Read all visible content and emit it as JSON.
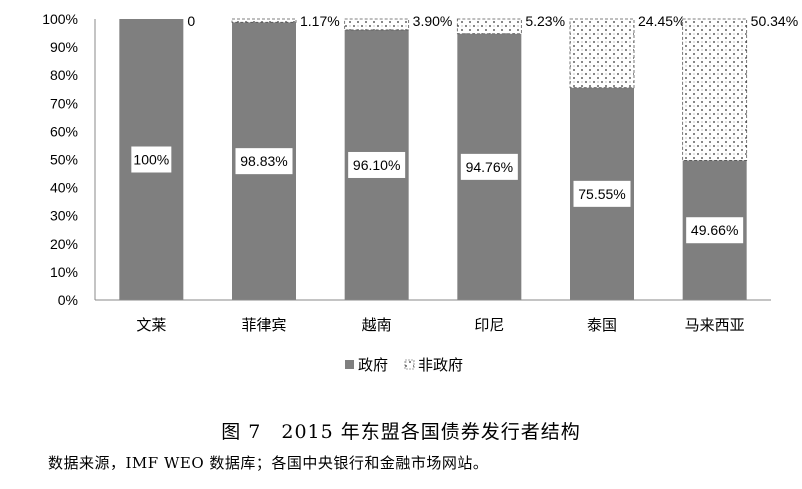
{
  "chart_data": {
    "type": "bar",
    "stacked": true,
    "categories": [
      "文莱",
      "菲律宾",
      "越南",
      "印尼",
      "泰国",
      "马来西亚"
    ],
    "series": [
      {
        "name": "政府",
        "values": [
          100,
          98.83,
          96.1,
          94.76,
          75.55,
          49.66
        ],
        "color": "#7f7f7f",
        "labels": [
          "100%",
          "98.83%",
          "96.10%",
          "94.76%",
          "75.55%",
          "49.66%"
        ]
      },
      {
        "name": "非政府",
        "values": [
          0,
          1.17,
          3.9,
          5.23,
          24.45,
          50.34
        ],
        "color": "#ffffff",
        "pattern": "dotted",
        "labels": [
          "0",
          "1.17%",
          "3.90%",
          "5.23%",
          "24.45%",
          "50.34%"
        ]
      }
    ],
    "ylim": [
      0,
      100
    ],
    "yticks": [
      "0%",
      "10%",
      "20%",
      "30%",
      "40%",
      "50%",
      "60%",
      "70%",
      "80%",
      "90%",
      "100%"
    ],
    "legend_position": "bottom"
  },
  "caption": "图 7　2015 年东盟各国债券发行者结构",
  "source": "数据来源，IMF WEO 数据库；各国中央银行和金融市场网站。"
}
